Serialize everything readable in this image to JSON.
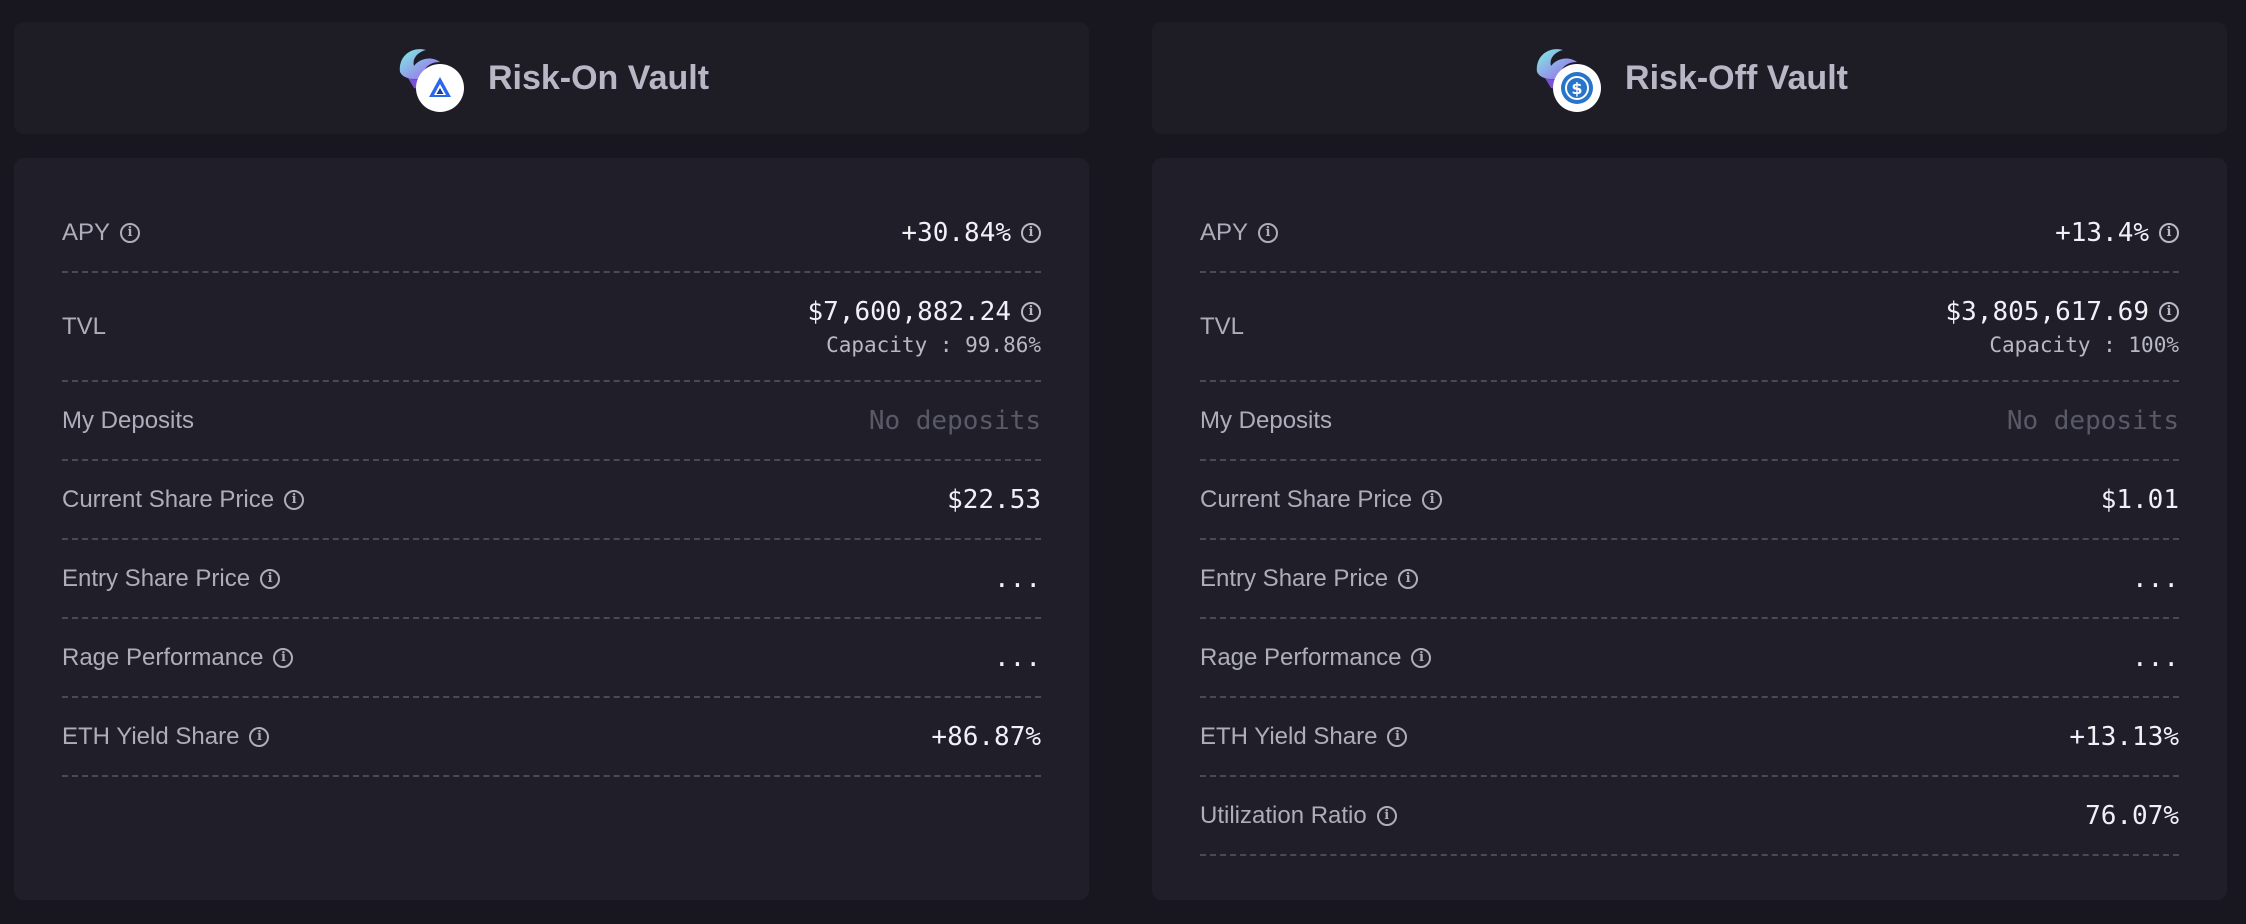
{
  "colors": {
    "background": "#18171f",
    "card": "#201f29",
    "header_card": "#1e1d26",
    "value": "#f1f0f6",
    "muted": "#5a5968"
  },
  "vaults": [
    {
      "title": "Risk-On Vault",
      "badge_icon": "arbitrum-icon",
      "apy": {
        "label": "APY",
        "value": "+30.84%"
      },
      "tvl": {
        "label": "TVL",
        "value": "$7,600,882.24",
        "capacity": "Capacity : 99.86%"
      },
      "my_deposits": {
        "label": "My Deposits",
        "value": "No deposits"
      },
      "current_share_price": {
        "label": "Current Share Price",
        "value": "$22.53"
      },
      "entry_share_price": {
        "label": "Entry Share Price",
        "value": "..."
      },
      "rage_performance": {
        "label": "Rage Performance",
        "value": "..."
      },
      "eth_yield_share": {
        "label": "ETH Yield Share",
        "value": "+86.87%"
      }
    },
    {
      "title": "Risk-Off Vault",
      "badge_icon": "usdc-icon",
      "apy": {
        "label": "APY",
        "value": "+13.4%"
      },
      "tvl": {
        "label": "TVL",
        "value": "$3,805,617.69",
        "capacity": "Capacity : 100%"
      },
      "my_deposits": {
        "label": "My Deposits",
        "value": "No deposits"
      },
      "current_share_price": {
        "label": "Current Share Price",
        "value": "$1.01"
      },
      "entry_share_price": {
        "label": "Entry Share Price",
        "value": "..."
      },
      "rage_performance": {
        "label": "Rage Performance",
        "value": "..."
      },
      "eth_yield_share": {
        "label": "ETH Yield Share",
        "value": "+13.13%"
      },
      "utilization_ratio": {
        "label": "Utilization Ratio",
        "value": "76.07%"
      }
    }
  ]
}
